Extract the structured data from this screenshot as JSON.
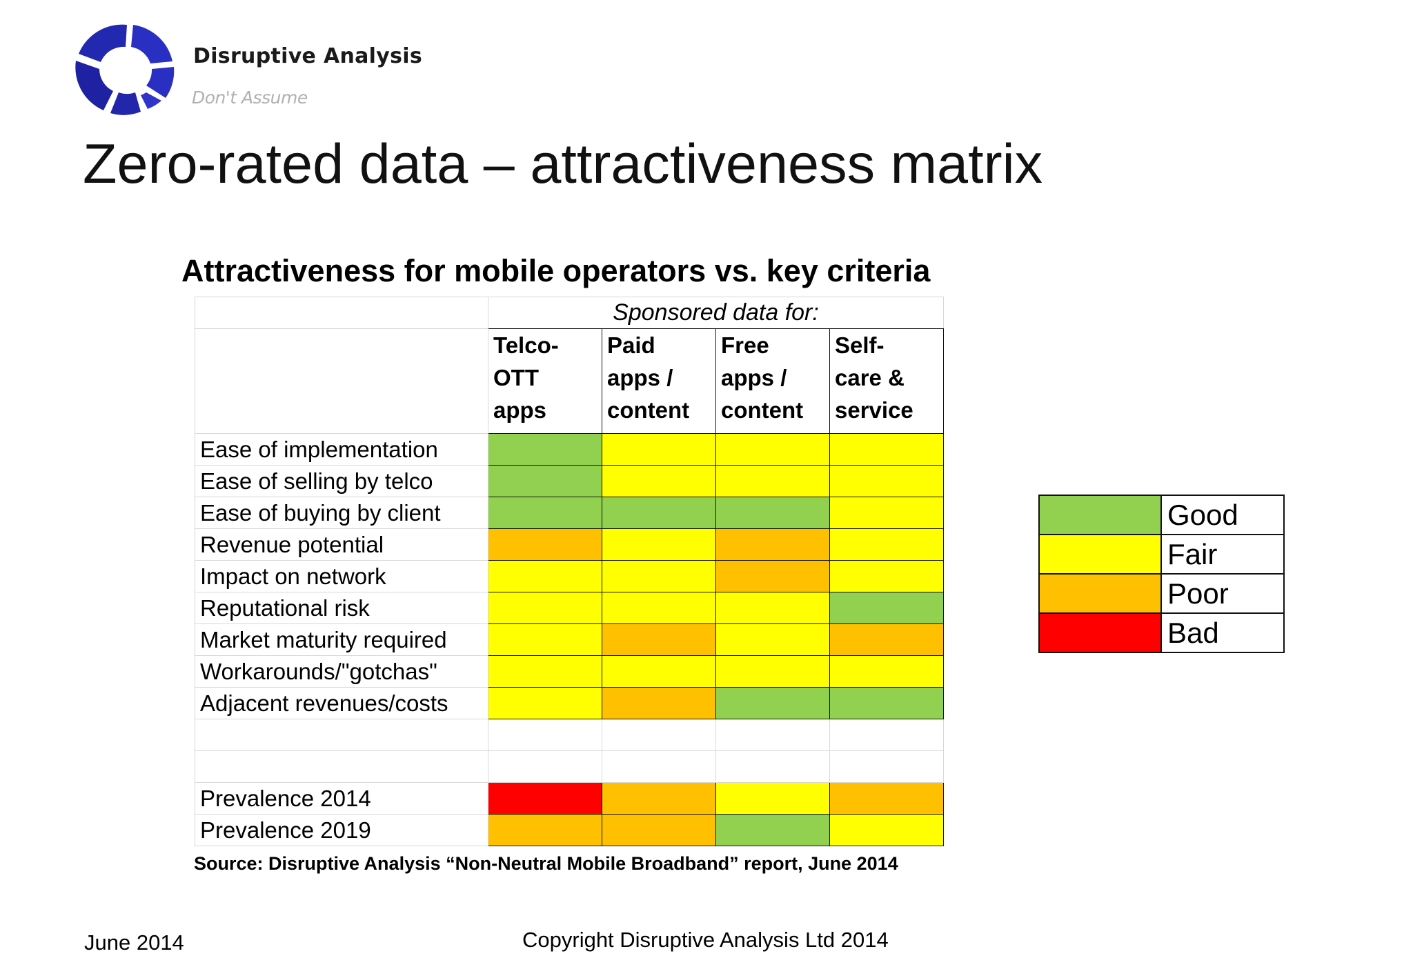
{
  "header": {
    "brand_name": "Disruptive Analysis",
    "tagline": "Don't Assume",
    "logo_icon": "disruptive-analysis-logo-icon"
  },
  "title": "Zero-rated data – attractiveness matrix",
  "matrix": {
    "heading": "Attractiveness for mobile operators vs. key criteria",
    "group_label": "Sponsored data for:",
    "columns": [
      [
        "Telco-",
        "OTT",
        "apps"
      ],
      [
        "Paid",
        "apps /",
        "content"
      ],
      [
        "Free",
        "apps /",
        "content"
      ],
      [
        "Self-",
        "care &",
        "service"
      ]
    ],
    "rows": [
      {
        "label": "Ease of implementation",
        "ratings": [
          "Good",
          "Fair",
          "Fair",
          "Fair"
        ]
      },
      {
        "label": "Ease of selling by telco",
        "ratings": [
          "Good",
          "Fair",
          "Fair",
          "Fair"
        ]
      },
      {
        "label": "Ease of buying by client",
        "ratings": [
          "Good",
          "Good",
          "Good",
          "Fair"
        ]
      },
      {
        "label": "Revenue potential",
        "ratings": [
          "Poor",
          "Fair",
          "Poor",
          "Fair"
        ]
      },
      {
        "label": "Impact on network",
        "ratings": [
          "Fair",
          "Fair",
          "Poor",
          "Fair"
        ]
      },
      {
        "label": "Reputational risk",
        "ratings": [
          "Fair",
          "Fair",
          "Fair",
          "Good"
        ]
      },
      {
        "label": "Market maturity required",
        "ratings": [
          "Fair",
          "Poor",
          "Fair",
          "Poor"
        ]
      },
      {
        "label": "Workarounds/\"gotchas\"",
        "ratings": [
          "Fair",
          "Fair",
          "Fair",
          "Fair"
        ]
      },
      {
        "label": "Adjacent revenues/costs",
        "ratings": [
          "Fair",
          "Poor",
          "Good",
          "Good"
        ]
      }
    ],
    "prevalence_rows": [
      {
        "label": "Prevalence 2014",
        "ratings": [
          "Bad",
          "Poor",
          "Fair",
          "Poor"
        ]
      },
      {
        "label": "Prevalence 2019",
        "ratings": [
          "Poor",
          "Poor",
          "Good",
          "Fair"
        ]
      }
    ],
    "source": "Source: Disruptive Analysis “Non-Neutral Mobile Broadband” report, June 2014"
  },
  "legend": [
    {
      "label": "Good",
      "color": "#92d050"
    },
    {
      "label": "Fair",
      "color": "#ffff00"
    },
    {
      "label": "Poor",
      "color": "#ffc000"
    },
    {
      "label": "Bad",
      "color": "#ff0000"
    }
  ],
  "footer": {
    "date": "June 2014",
    "copyright": "Copyright Disruptive Analysis Ltd 2014"
  },
  "colors": {
    "logo_blue": "#2a2fc4",
    "logo_blue_dark": "#1c1f9a"
  }
}
